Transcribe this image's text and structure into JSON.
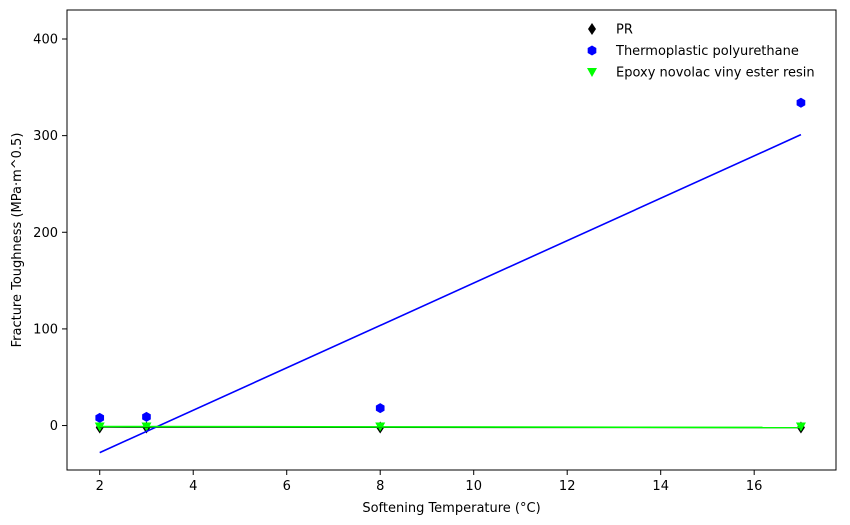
{
  "chart_data": {
    "type": "scatter",
    "xlabel": "Softening Temperature (°C)",
    "ylabel": "Fracture Toughness (MPa·m^0.5)",
    "xlim": [
      1.3,
      17.75
    ],
    "ylim": [
      -46,
      430
    ],
    "xticks": [
      2,
      4,
      6,
      8,
      10,
      12,
      14,
      16
    ],
    "yticks": [
      0,
      100,
      200,
      300,
      400
    ],
    "grid": false,
    "legend_position": "top-right",
    "series": [
      {
        "name": "PR",
        "marker": "diamond",
        "color": "#000000",
        "points": [
          [
            2,
            -2
          ],
          [
            3,
            -2
          ],
          [
            8,
            -2
          ],
          [
            17,
            -2
          ]
        ],
        "fit": [
          [
            2,
            -1.5
          ],
          [
            17,
            -2
          ]
        ]
      },
      {
        "name": "Thermoplastic polyurethane",
        "marker": "hexagon",
        "color": "#0000ff",
        "points": [
          [
            2,
            8
          ],
          [
            3,
            9
          ],
          [
            8,
            18
          ],
          [
            17,
            334
          ]
        ],
        "fit": [
          [
            2,
            -28
          ],
          [
            17,
            301
          ]
        ]
      },
      {
        "name": "Epoxy novolac viny ester resin",
        "marker": "triangle-down",
        "color": "#00ff00",
        "points": [
          [
            2,
            -1
          ],
          [
            3,
            -1
          ],
          [
            8,
            -1
          ],
          [
            17,
            -1
          ]
        ],
        "fit": [
          [
            2,
            -1
          ],
          [
            17,
            -2
          ]
        ]
      }
    ]
  }
}
